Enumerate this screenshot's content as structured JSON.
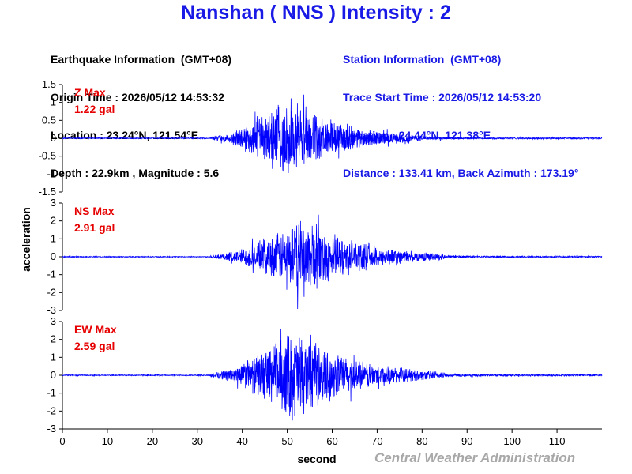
{
  "title": "Nanshan ( NNS ) Intensity : 2",
  "earthquake_info": {
    "heading": "Earthquake Information  (GMT+08)",
    "origin_time": "Origin Time : 2026/05/12 14:53:32",
    "location": "Location : 23.24°N, 121.54°E",
    "depth_magnitude": "Depth : 22.9km , Magnitude : 5.6"
  },
  "station_info": {
    "heading": "Station Information  (GMT+08)",
    "trace_start": "Trace Start Time : 2026/05/12 14:53:20",
    "location": "Location : 24.44°N, 121.38°E",
    "distance": "Distance : 133.41 km, Back Azimuth : 173.19°"
  },
  "credit": "Central Weather Administration",
  "chart_data": [
    {
      "type": "line",
      "panel_label": "Z Max",
      "max_label": "1.22 gal",
      "max": 1.22,
      "ylim": [
        -1.5,
        1.5
      ],
      "yticks": [
        "1.5",
        "1",
        "0.5",
        "0",
        "-0.5",
        "-1",
        "-1.5"
      ],
      "ytick_values": [
        1.5,
        1,
        0.5,
        0,
        -0.5,
        -1,
        -1.5
      ],
      "envelope": {
        "onset": 33,
        "peak": 50,
        "decay_end": 80,
        "peak_amp": 0.75
      }
    },
    {
      "type": "line",
      "panel_label": "NS Max",
      "max_label": "2.91 gal",
      "max": 2.91,
      "ylim": [
        -3,
        3
      ],
      "yticks": [
        "3",
        "2",
        "1",
        "0",
        "-1",
        "-2",
        "-3"
      ],
      "ytick_values": [
        3,
        2,
        1,
        0,
        -1,
        -2,
        -3
      ],
      "envelope": {
        "onset": 33,
        "peak": 54,
        "decay_end": 85,
        "peak_amp": 1.5
      }
    },
    {
      "type": "line",
      "panel_label": "EW Max",
      "max_label": "2.59 gal",
      "max": 2.59,
      "ylim": [
        -3,
        3
      ],
      "yticks": [
        "3",
        "2",
        "1",
        "0",
        "-1",
        "-2",
        "-3"
      ],
      "ytick_values": [
        3,
        2,
        1,
        0,
        -1,
        -2,
        -3
      ],
      "envelope": {
        "onset": 33,
        "peak": 51,
        "decay_end": 85,
        "peak_amp": 1.25
      }
    }
  ],
  "x_axis": {
    "xlabel": "second",
    "xlim": [
      0,
      120
    ],
    "ticks": [
      "0",
      "10",
      "20",
      "30",
      "40",
      "50",
      "60",
      "70",
      "80",
      "90",
      "100",
      "110"
    ],
    "tick_values": [
      0,
      10,
      20,
      30,
      40,
      50,
      60,
      70,
      80,
      90,
      100,
      110
    ]
  },
  "ylabel": "acceleration",
  "colors": {
    "title": "#1a1ae6",
    "station_text": "#1a1ae6",
    "trace": "#0000ff",
    "max_label": "#e60000",
    "credit": "#a8a8a8",
    "axis": "#000000"
  }
}
